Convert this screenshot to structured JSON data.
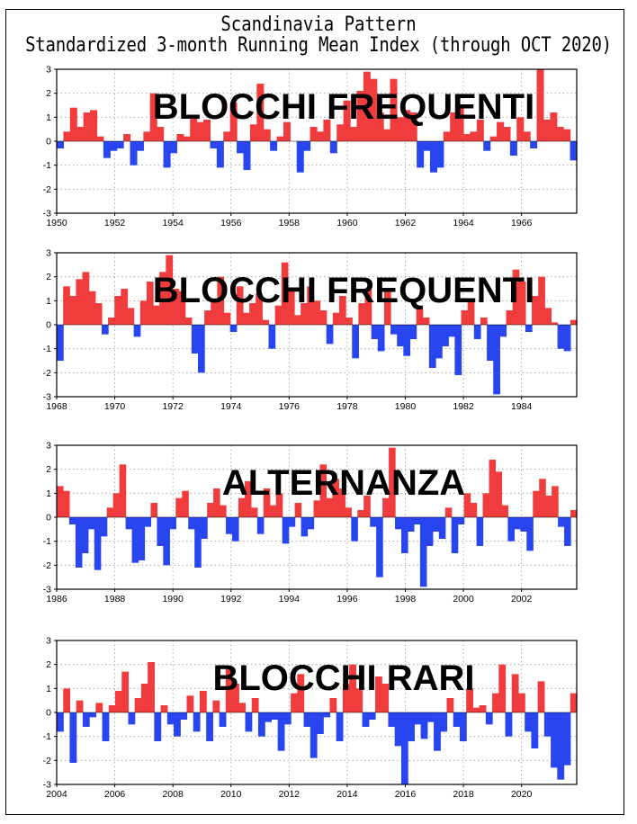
{
  "title": "Scandinavia Pattern",
  "subtitle": "Standardized 3-month Running Mean Index (through OCT 2020)",
  "colors": {
    "positive": "#f03c3c",
    "negative": "#2845f0",
    "grid": "#9a9a9a",
    "frame": "#000000"
  },
  "chart_data": [
    {
      "type": "area",
      "label": "BLOCCHI FREQUENTI",
      "xlim": [
        1950,
        1967.9
      ],
      "ylim": [
        -3,
        3
      ],
      "xticks": [
        "1950",
        "1952",
        "1954",
        "1956",
        "1958",
        "1960",
        "1962",
        "1964",
        "1966"
      ],
      "yticks": [
        "3",
        "2",
        "1",
        "0",
        "-1",
        "-2",
        "-3"
      ],
      "grid": true,
      "x_start": 1950,
      "step": 0.25,
      "values": [
        -0.3,
        0.4,
        1.4,
        0.6,
        1.2,
        1.3,
        0.2,
        -0.7,
        -0.4,
        -0.3,
        0.3,
        -1.0,
        -0.4,
        0.4,
        2.0,
        0.6,
        -1.1,
        -0.5,
        0.3,
        0.2,
        1.0,
        0.8,
        0.9,
        -0.3,
        -1.1,
        0.4,
        1.6,
        -0.5,
        -1.2,
        0.7,
        2.4,
        0.5,
        -0.4,
        0.2,
        0.8,
        0.0,
        -1.3,
        -0.4,
        0.6,
        0.4,
        0.9,
        -0.5,
        0.7,
        1.7,
        0.6,
        2.1,
        2.9,
        2.6,
        1.2,
        0.5,
        2.6,
        1.0,
        1.3,
        1.2,
        -1.1,
        -0.4,
        -1.3,
        -1.1,
        0.4,
        1.2,
        1.5,
        0.3,
        0.4,
        0.9,
        -0.4,
        0.2,
        0.8,
        0.6,
        -0.6,
        1.0,
        0.4,
        -0.3,
        3.0,
        0.9,
        1.2,
        0.6,
        0.5,
        -0.8
      ],
      "annotations": []
    },
    {
      "type": "area",
      "label": "BLOCCHI FREQUENTI",
      "xlim": [
        1968,
        1985.9
      ],
      "ylim": [
        -3,
        3
      ],
      "xticks": [
        "1968",
        "1970",
        "1972",
        "1974",
        "1976",
        "1978",
        "1980",
        "1982",
        "1984"
      ],
      "yticks": [
        "3",
        "2",
        "1",
        "0",
        "-1",
        "-2",
        "-3"
      ],
      "grid": true,
      "x_start": 1968,
      "step": 0.25,
      "values": [
        -1.5,
        1.6,
        1.2,
        1.9,
        2.2,
        1.4,
        0.9,
        -0.4,
        0.3,
        1.2,
        1.5,
        0.7,
        -0.5,
        1.0,
        1.8,
        0.8,
        2.2,
        2.9,
        1.5,
        1.4,
        0.3,
        -1.2,
        -2.0,
        0.6,
        1.1,
        2.0,
        0.5,
        -0.3,
        1.6,
        0.5,
        0.9,
        1.3,
        0.2,
        -1.0,
        0.8,
        2.6,
        1.4,
        0.4,
        0.9,
        1.6,
        1.0,
        0.6,
        -0.8,
        0.5,
        1.2,
        0.3,
        -1.4,
        0.9,
        1.5,
        -0.6,
        -1.1,
        1.5,
        -0.4,
        -0.9,
        -1.3,
        -0.6,
        0.7,
        0.3,
        -1.8,
        -1.4,
        -0.9,
        -0.5,
        -2.1,
        0.6,
        1.0,
        -0.6,
        0.3,
        -1.5,
        -2.9,
        -0.5,
        0.6,
        2.3,
        1.8,
        -0.3,
        1.2,
        2.0,
        0.7,
        0.1,
        -1.0,
        -1.1,
        0.2
      ],
      "annotations": []
    },
    {
      "type": "area",
      "label": "ALTERNANZA",
      "xlim": [
        1986,
        2003.9
      ],
      "ylim": [
        -3,
        3
      ],
      "xticks": [
        "1986",
        "1988",
        "1990",
        "1992",
        "1994",
        "1996",
        "1998",
        "2000",
        "2002"
      ],
      "yticks": [
        "3",
        "2",
        "1",
        "0",
        "-1",
        "-2",
        "-3"
      ],
      "grid": true,
      "x_start": 1986,
      "step": 0.25,
      "values": [
        1.3,
        1.1,
        -0.3,
        -2.1,
        -1.5,
        -0.5,
        -2.2,
        -0.8,
        0.4,
        1.0,
        2.2,
        -0.5,
        -1.9,
        -1.8,
        -0.4,
        0.6,
        -1.2,
        -2.0,
        -0.5,
        0.8,
        1.1,
        -0.5,
        -2.1,
        -0.9,
        0.6,
        1.2,
        0.5,
        -0.7,
        -1.0,
        0.8,
        1.5,
        0.4,
        -0.7,
        1.2,
        0.5,
        1.0,
        -1.1,
        -0.4,
        0.6,
        -0.8,
        -0.5,
        0.7,
        2.2,
        0.8,
        1.6,
        1.2,
        0.4,
        -1.0,
        0.3,
        0.9,
        -0.4,
        -2.5,
        0.8,
        2.9,
        -0.5,
        -1.5,
        -0.6,
        -0.3,
        -2.9,
        -1.2,
        -0.6,
        -0.9,
        0.4,
        -1.5,
        -0.3,
        1.0,
        0.6,
        -1.2,
        1.0,
        2.4,
        1.9,
        0.5,
        -1.0,
        -0.5,
        -0.6,
        -1.4,
        1.1,
        1.6,
        0.9,
        1.3,
        -0.4,
        -1.2,
        0.3
      ],
      "annotations": []
    },
    {
      "type": "area",
      "label": "BLOCCHI RARI",
      "xlim": [
        2004,
        2021.9
      ],
      "ylim": [
        -3,
        3
      ],
      "xticks": [
        "2004",
        "2006",
        "2008",
        "2010",
        "2012",
        "2014",
        "2016",
        "2018",
        "2020"
      ],
      "yticks": [
        "3",
        "2",
        "1",
        "0",
        "-1",
        "-2",
        "-3"
      ],
      "grid": true,
      "x_start": 2004,
      "step": 0.25,
      "values": [
        -0.8,
        1.0,
        -2.1,
        0.5,
        -0.6,
        -0.2,
        0.4,
        -1.2,
        0.3,
        0.9,
        1.7,
        -0.5,
        0.6,
        1.2,
        2.1,
        -1.2,
        0.3,
        -0.5,
        -1.0,
        -0.3,
        0.7,
        -0.8,
        0.9,
        -1.2,
        0.5,
        -0.6,
        1.8,
        1.2,
        0.4,
        -0.8,
        0.6,
        -1.0,
        -0.4,
        -0.3,
        -1.6,
        -0.5,
        0.8,
        1.6,
        -0.6,
        -1.9,
        -0.9,
        -0.2,
        0.6,
        -1.2,
        1.2,
        2.0,
        1.0,
        -0.6,
        -0.3,
        1.5,
        1.2,
        -0.6,
        -1.4,
        -3.0,
        -1.2,
        -0.5,
        -1.1,
        -0.4,
        -1.6,
        -0.8,
        0.6,
        -0.6,
        -1.2,
        1.0,
        0.2,
        0.3,
        -0.5,
        0.8,
        2.0,
        -1.0,
        1.6,
        0.8,
        -0.8,
        -1.5,
        1.3,
        -1.0,
        -2.3,
        -2.8,
        -2.2,
        0.8
      ],
      "annotations": []
    }
  ]
}
